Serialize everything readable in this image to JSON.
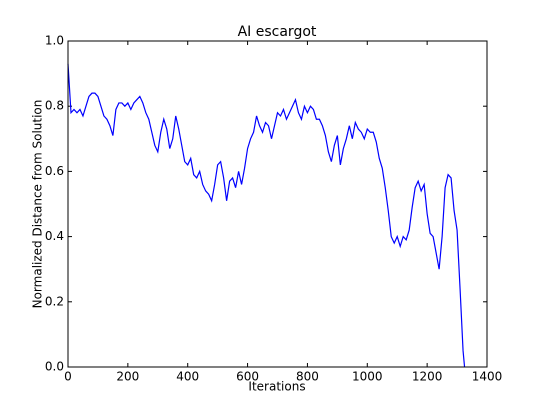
{
  "chart_data": {
    "type": "line",
    "title": "AI escargot",
    "xlabel": "Iterations",
    "ylabel": "Normalized Distance from Solution",
    "x": [
      0,
      10,
      20,
      30,
      40,
      50,
      60,
      70,
      80,
      90,
      100,
      110,
      120,
      130,
      140,
      150,
      160,
      170,
      180,
      190,
      200,
      210,
      220,
      230,
      240,
      250,
      260,
      270,
      280,
      290,
      300,
      310,
      320,
      330,
      340,
      350,
      360,
      370,
      380,
      390,
      400,
      410,
      420,
      430,
      440,
      450,
      460,
      470,
      480,
      490,
      500,
      510,
      520,
      530,
      540,
      550,
      560,
      570,
      580,
      590,
      600,
      610,
      620,
      630,
      640,
      650,
      660,
      670,
      680,
      690,
      700,
      710,
      720,
      730,
      740,
      750,
      760,
      770,
      780,
      790,
      800,
      810,
      820,
      830,
      840,
      850,
      860,
      870,
      880,
      890,
      900,
      910,
      920,
      930,
      940,
      950,
      960,
      970,
      980,
      990,
      1000,
      1010,
      1020,
      1030,
      1040,
      1050,
      1060,
      1070,
      1080,
      1090,
      1100,
      1110,
      1120,
      1130,
      1140,
      1150,
      1160,
      1170,
      1180,
      1190,
      1200,
      1210,
      1220,
      1230,
      1240,
      1250,
      1260,
      1270,
      1280,
      1290,
      1300,
      1310,
      1320,
      1325
    ],
    "series": [
      {
        "color": "#0000ff",
        "values": [
          0.93,
          0.78,
          0.79,
          0.78,
          0.79,
          0.77,
          0.8,
          0.83,
          0.84,
          0.84,
          0.83,
          0.8,
          0.77,
          0.76,
          0.74,
          0.71,
          0.79,
          0.81,
          0.81,
          0.8,
          0.81,
          0.79,
          0.81,
          0.82,
          0.83,
          0.81,
          0.78,
          0.76,
          0.72,
          0.68,
          0.66,
          0.72,
          0.76,
          0.73,
          0.67,
          0.7,
          0.77,
          0.73,
          0.68,
          0.63,
          0.62,
          0.64,
          0.59,
          0.58,
          0.6,
          0.56,
          0.54,
          0.53,
          0.51,
          0.56,
          0.62,
          0.63,
          0.58,
          0.51,
          0.57,
          0.58,
          0.55,
          0.6,
          0.56,
          0.61,
          0.67,
          0.7,
          0.72,
          0.77,
          0.74,
          0.72,
          0.75,
          0.74,
          0.7,
          0.74,
          0.78,
          0.77,
          0.79,
          0.76,
          0.78,
          0.8,
          0.82,
          0.78,
          0.76,
          0.8,
          0.78,
          0.8,
          0.79,
          0.76,
          0.76,
          0.74,
          0.71,
          0.66,
          0.63,
          0.68,
          0.71,
          0.62,
          0.67,
          0.7,
          0.74,
          0.7,
          0.75,
          0.73,
          0.72,
          0.7,
          0.73,
          0.72,
          0.72,
          0.69,
          0.64,
          0.61,
          0.55,
          0.48,
          0.4,
          0.38,
          0.4,
          0.37,
          0.4,
          0.39,
          0.42,
          0.49,
          0.55,
          0.57,
          0.54,
          0.56,
          0.47,
          0.41,
          0.4,
          0.35,
          0.3,
          0.4,
          0.55,
          0.59,
          0.58,
          0.48,
          0.42,
          0.24,
          0.05,
          0.0
        ]
      }
    ],
    "xlim": [
      0,
      1400
    ],
    "xticks": [
      0,
      200,
      400,
      600,
      800,
      1000,
      1200,
      1400
    ],
    "ylim": [
      0,
      1
    ],
    "yticks": [
      {
        "value": 0,
        "label": "0.0"
      },
      0.2,
      0.4,
      0.6,
      0.8,
      {
        "value": 1,
        "label": "1.0"
      }
    ]
  }
}
